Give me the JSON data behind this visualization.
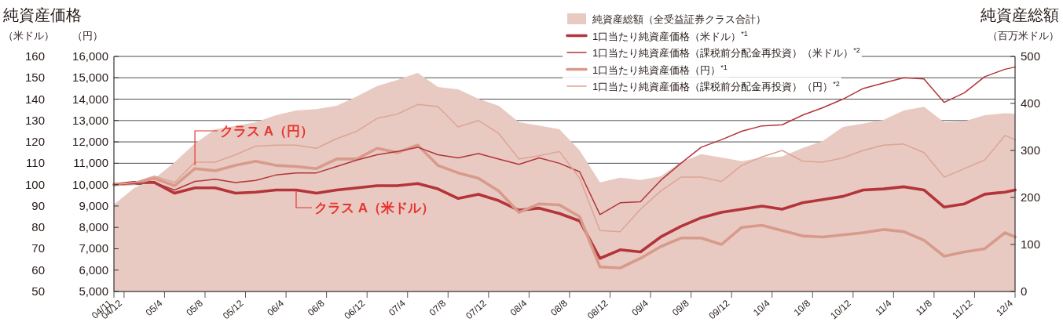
{
  "chart_data": {
    "type": "line",
    "annotations": [
      "純資産価格",
      "純資産総額",
      {
        "text": "クラス A（円）",
        "x": "2005-07",
        "y": 109
      },
      {
        "text": "クラス A（米ドル）",
        "x": "2006-05",
        "y": 97.5
      }
    ],
    "ylabel": "（米ドル）",
    "y3label": "（円）",
    "y2label": "（百万米ドル）",
    "x": [
      "2004-11",
      "2005-01",
      "2005-03",
      "2005-05",
      "2005-07",
      "2005-09",
      "2005-11",
      "2006-01",
      "2006-03",
      "2006-05",
      "2006-07",
      "2006-09",
      "2006-11",
      "2007-01",
      "2007-03",
      "2007-05",
      "2007-07",
      "2007-09",
      "2007-11",
      "2008-01",
      "2008-03",
      "2008-05",
      "2008-07",
      "2008-09",
      "2008-11",
      "2009-01",
      "2009-03",
      "2009-05",
      "2009-07",
      "2009-09",
      "2009-11",
      "2010-01",
      "2010-03",
      "2010-05",
      "2010-07",
      "2010-09",
      "2010-11",
      "2011-01",
      "2011-03",
      "2011-05",
      "2011-07",
      "2011-09",
      "2011-11",
      "2012-01",
      "2012-03",
      "2012-04"
    ],
    "xlim": [
      "2004-11",
      "2012-04"
    ],
    "xticks": [
      {
        "value": "2004-11",
        "label": "04/11"
      },
      {
        "value": "2004-12",
        "label": "04/12"
      },
      {
        "value": "2005-04",
        "label": "05/4"
      },
      {
        "value": "2005-08",
        "label": "05/8"
      },
      {
        "value": "2005-12",
        "label": "05/12"
      },
      {
        "value": "2006-04",
        "label": "06/4"
      },
      {
        "value": "2006-08",
        "label": "06/8"
      },
      {
        "value": "2006-12",
        "label": "06/12"
      },
      {
        "value": "2007-04",
        "label": "07/4"
      },
      {
        "value": "2007-08",
        "label": "07/8"
      },
      {
        "value": "2007-12",
        "label": "07/12"
      },
      {
        "value": "2008-04",
        "label": "08/4"
      },
      {
        "value": "2008-08",
        "label": "08/8"
      },
      {
        "value": "2008-12",
        "label": "08/12"
      },
      {
        "value": "2009-04",
        "label": "09/4"
      },
      {
        "value": "2009-08",
        "label": "09/8"
      },
      {
        "value": "2009-12",
        "label": "09/12"
      },
      {
        "value": "2010-04",
        "label": "10/4"
      },
      {
        "value": "2010-08",
        "label": "10/8"
      },
      {
        "value": "2010-12",
        "label": "10/12"
      },
      {
        "value": "2011-04",
        "label": "11/4"
      },
      {
        "value": "2011-08",
        "label": "11/8"
      },
      {
        "value": "2011-12",
        "label": "11/12"
      },
      {
        "value": "2012-04",
        "label": "12/4"
      }
    ],
    "ylim": [
      50,
      160
    ],
    "yticks": [
      50,
      60,
      70,
      80,
      90,
      100,
      110,
      120,
      130,
      140,
      150,
      160
    ],
    "y3lim": [
      5000,
      16000
    ],
    "y3ticks": [
      {
        "value": 5000,
        "label": "5,000"
      },
      {
        "value": 6000,
        "label": "6,000"
      },
      {
        "value": 7000,
        "label": "7,000"
      },
      {
        "value": 8000,
        "label": "8,000"
      },
      {
        "value": 9000,
        "label": "9,000"
      },
      {
        "value": 10000,
        "label": "10,000"
      },
      {
        "value": 11000,
        "label": "11,000"
      },
      {
        "value": 12000,
        "label": "12,000"
      },
      {
        "value": 13000,
        "label": "13,000"
      },
      {
        "value": 14000,
        "label": "14,000"
      },
      {
        "value": 15000,
        "label": "15,000"
      },
      {
        "value": 16000,
        "label": "16,000"
      }
    ],
    "y2lim": [
      0,
      500
    ],
    "y2ticks": [
      0,
      100,
      200,
      300,
      400,
      500
    ],
    "grid": "y",
    "legend": "top",
    "series": [
      {
        "name": "純資産総額（全受益証券クラス合計）",
        "type": "area",
        "axis": "y2",
        "color": "#e8cac2",
        "values": [
          185,
          220,
          240,
          275,
          315,
          345,
          352,
          360,
          375,
          385,
          388,
          395,
          415,
          437,
          450,
          465,
          435,
          430,
          410,
          395,
          360,
          353,
          345,
          300,
          232,
          242,
          237,
          245,
          275,
          292,
          285,
          277,
          285,
          287,
          305,
          320,
          350,
          357,
          365,
          385,
          393,
          360,
          362,
          375,
          379,
          378
        ]
      },
      {
        "name": "1口当たり純資産価格（米ドル）$^{*1}$",
        "color": "#b4343a",
        "values": [
          100,
          101,
          101,
          96,
          98.5,
          98.5,
          96,
          96.5,
          97.5,
          97.5,
          96,
          97.5,
          98.5,
          99.5,
          99.5,
          100.5,
          98,
          93.5,
          95.5,
          92.5,
          88,
          89,
          86.5,
          83,
          65.5,
          69.5,
          68.5,
          75.5,
          80.5,
          84.5,
          87,
          88.5,
          90,
          88.5,
          91.5,
          93,
          94.5,
          97.5,
          98,
          99,
          97.5,
          89.5,
          91,
          95.5,
          96.5,
          97.5
        ]
      },
      {
        "name": "1口当たり純資産価格（課税前分配金再投資）（米ドル）$^{*2}$",
        "color": "#b4343a",
        "values": [
          100,
          100.5,
          101,
          97.5,
          101.5,
          102.5,
          101,
          102,
          104.5,
          105.5,
          105.5,
          108.5,
          111.5,
          114,
          115.5,
          117.5,
          114,
          112.5,
          114.5,
          112,
          109.5,
          112.5,
          110,
          106,
          86,
          91.5,
          92,
          102,
          110,
          117.5,
          121,
          125,
          127.5,
          128,
          132.5,
          136,
          140,
          145,
          147.5,
          150,
          149.5,
          138.5,
          143,
          150.5,
          154,
          155
        ]
      },
      {
        "name": "1口当たり純資産価格（円）$^{*1}$",
        "axis": "y3",
        "color": "#d89a8b",
        "values": [
          10000,
          10050,
          10300,
          9950,
          10750,
          10650,
          10900,
          11100,
          10900,
          10850,
          10750,
          11200,
          11200,
          11700,
          11500,
          11850,
          10900,
          10550,
          10300,
          9700,
          8700,
          9100,
          9050,
          8500,
          6150,
          6100,
          6550,
          7100,
          7500,
          7500,
          7200,
          8000,
          8100,
          7850,
          7600,
          7550,
          7650,
          7750,
          7900,
          7800,
          7400,
          6650,
          6850,
          7000,
          7750,
          7550
        ]
      },
      {
        "name": "1口当たり純資産価格（課税前分配金再投資）（円）$^{*2}$",
        "axis": "y3",
        "color": "#dda494",
        "values": [
          10000,
          10100,
          10400,
          10100,
          11050,
          11050,
          11400,
          11800,
          11850,
          11850,
          11700,
          12150,
          12500,
          13100,
          13300,
          13750,
          13650,
          12700,
          13000,
          12400,
          11200,
          11350,
          11550,
          10300,
          7850,
          7800,
          8850,
          9700,
          10350,
          10350,
          10150,
          10900,
          11300,
          11600,
          11100,
          11050,
          11250,
          11600,
          11850,
          11900,
          11500,
          10350,
          10750,
          11150,
          12300,
          12100
        ]
      }
    ]
  }
}
